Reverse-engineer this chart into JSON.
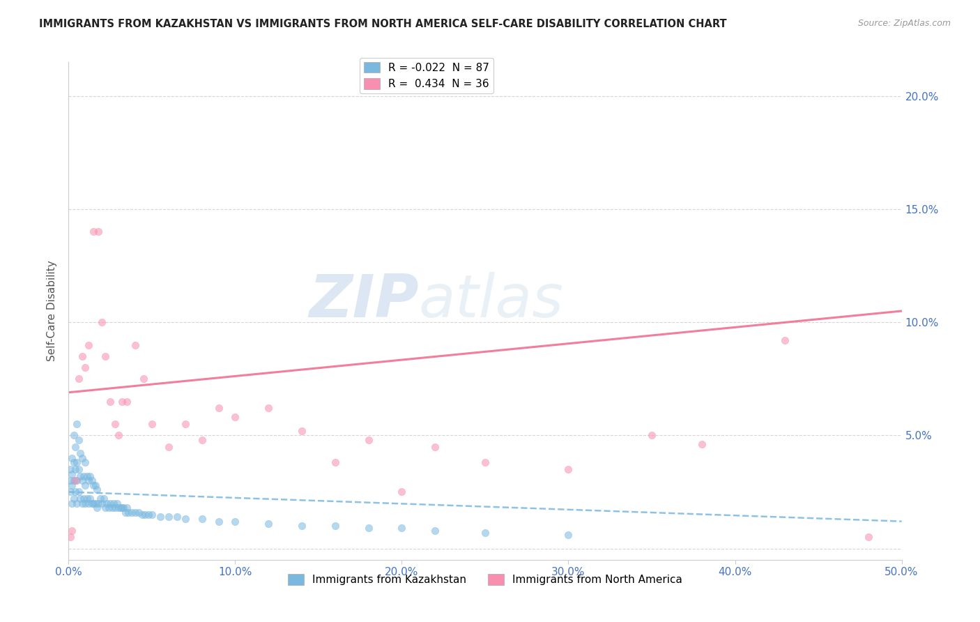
{
  "title": "IMMIGRANTS FROM KAZAKHSTAN VS IMMIGRANTS FROM NORTH AMERICA SELF-CARE DISABILITY CORRELATION CHART",
  "source": "Source: ZipAtlas.com",
  "ylabel": "Self-Care Disability",
  "xlim": [
    0.0,
    0.5
  ],
  "ylim": [
    -0.005,
    0.215
  ],
  "xticks": [
    0.0,
    0.1,
    0.2,
    0.3,
    0.4,
    0.5
  ],
  "xticklabels": [
    "0.0%",
    "10.0%",
    "20.0%",
    "30.0%",
    "40.0%",
    "50.0%"
  ],
  "yticks": [
    0.0,
    0.05,
    0.1,
    0.15,
    0.2
  ],
  "yticklabels": [
    "",
    "5.0%",
    "10.0%",
    "15.0%",
    "20.0%"
  ],
  "legend_entries": [
    {
      "label": "R = -0.022  N = 87",
      "color": "#7ab8e0"
    },
    {
      "label": "R =  0.434  N = 36",
      "color": "#f88fb0"
    }
  ],
  "watermark_zip": "ZIP",
  "watermark_atlas": "atlas",
  "kazakhstan_color": "#7ab8e0",
  "north_america_color": "#f88fb0",
  "kazakhstan_trend_color": "#7ab8e0",
  "north_america_trend_color": "#f07090",
  "kazakhstan_scatter": {
    "x": [
      0.001,
      0.001,
      0.001,
      0.002,
      0.002,
      0.002,
      0.002,
      0.003,
      0.003,
      0.003,
      0.003,
      0.004,
      0.004,
      0.004,
      0.005,
      0.005,
      0.005,
      0.005,
      0.006,
      0.006,
      0.006,
      0.007,
      0.007,
      0.007,
      0.008,
      0.008,
      0.008,
      0.009,
      0.009,
      0.01,
      0.01,
      0.01,
      0.011,
      0.011,
      0.012,
      0.012,
      0.013,
      0.013,
      0.014,
      0.014,
      0.015,
      0.015,
      0.016,
      0.016,
      0.017,
      0.017,
      0.018,
      0.019,
      0.02,
      0.021,
      0.022,
      0.023,
      0.024,
      0.025,
      0.026,
      0.027,
      0.028,
      0.029,
      0.03,
      0.031,
      0.032,
      0.033,
      0.034,
      0.035,
      0.036,
      0.038,
      0.04,
      0.042,
      0.044,
      0.046,
      0.048,
      0.05,
      0.055,
      0.06,
      0.065,
      0.07,
      0.08,
      0.09,
      0.1,
      0.12,
      0.14,
      0.16,
      0.18,
      0.2,
      0.22,
      0.25,
      0.3
    ],
    "y": [
      0.025,
      0.03,
      0.035,
      0.02,
      0.028,
      0.033,
      0.04,
      0.022,
      0.03,
      0.038,
      0.05,
      0.025,
      0.035,
      0.045,
      0.02,
      0.03,
      0.038,
      0.055,
      0.025,
      0.035,
      0.048,
      0.022,
      0.032,
      0.042,
      0.02,
      0.03,
      0.04,
      0.022,
      0.032,
      0.02,
      0.028,
      0.038,
      0.022,
      0.032,
      0.02,
      0.03,
      0.022,
      0.032,
      0.02,
      0.03,
      0.02,
      0.028,
      0.02,
      0.028,
      0.018,
      0.026,
      0.02,
      0.022,
      0.02,
      0.022,
      0.018,
      0.02,
      0.018,
      0.02,
      0.018,
      0.02,
      0.018,
      0.02,
      0.018,
      0.018,
      0.018,
      0.018,
      0.016,
      0.018,
      0.016,
      0.016,
      0.016,
      0.016,
      0.015,
      0.015,
      0.015,
      0.015,
      0.014,
      0.014,
      0.014,
      0.013,
      0.013,
      0.012,
      0.012,
      0.011,
      0.01,
      0.01,
      0.009,
      0.009,
      0.008,
      0.007,
      0.006
    ]
  },
  "north_america_scatter": {
    "x": [
      0.001,
      0.002,
      0.004,
      0.006,
      0.008,
      0.01,
      0.012,
      0.015,
      0.018,
      0.02,
      0.022,
      0.025,
      0.028,
      0.03,
      0.032,
      0.035,
      0.04,
      0.045,
      0.05,
      0.06,
      0.07,
      0.08,
      0.09,
      0.1,
      0.12,
      0.14,
      0.16,
      0.18,
      0.2,
      0.22,
      0.25,
      0.3,
      0.35,
      0.38,
      0.43,
      0.48
    ],
    "y": [
      0.005,
      0.008,
      0.03,
      0.075,
      0.085,
      0.08,
      0.09,
      0.14,
      0.14,
      0.1,
      0.085,
      0.065,
      0.055,
      0.05,
      0.065,
      0.065,
      0.09,
      0.075,
      0.055,
      0.045,
      0.055,
      0.048,
      0.062,
      0.058,
      0.062,
      0.052,
      0.038,
      0.048,
      0.025,
      0.045,
      0.038,
      0.035,
      0.05,
      0.046,
      0.092,
      0.005
    ]
  },
  "na_trend_x0": 0.0,
  "na_trend_y0": 0.069,
  "na_trend_x1": 0.5,
  "na_trend_y1": 0.105,
  "kaz_trend_x0": 0.0,
  "kaz_trend_y0": 0.025,
  "kaz_trend_x1": 0.5,
  "kaz_trend_y1": 0.012
}
